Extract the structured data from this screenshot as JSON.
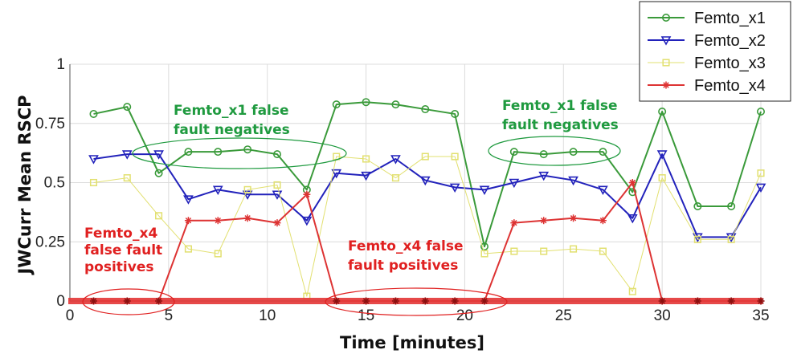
{
  "chart_data": {
    "type": "line",
    "title": "",
    "xlabel": "Time [minutes]",
    "ylabel": "JWCurr Mean RSCP",
    "xlim": [
      0,
      35
    ],
    "ylim": [
      0,
      1
    ],
    "xticks": [
      0,
      5,
      10,
      15,
      20,
      25,
      30,
      35
    ],
    "xtick_labels": [
      "0",
      "5",
      "10",
      "15",
      "20",
      "25",
      "30",
      "35"
    ],
    "yticks": [
      0,
      0.25,
      0.5,
      0.75,
      1
    ],
    "ytick_labels": [
      "0",
      "0.25",
      "0.5",
      "0.75",
      "1"
    ],
    "grid": true,
    "legend_position": "top-right",
    "series": [
      {
        "name": "Femto_x1",
        "color": "#3a9a3a",
        "marker": "circle",
        "x": [
          1.2,
          2.9,
          4.5,
          6.0,
          7.5,
          9.0,
          10.5,
          12.0,
          13.5,
          15.0,
          16.5,
          18.0,
          19.5,
          21.0,
          22.5,
          24.0,
          25.5,
          27.0,
          28.5,
          30.0,
          31.8,
          33.5,
          35.0
        ],
        "y": [
          0.79,
          0.82,
          0.54,
          0.63,
          0.63,
          0.64,
          0.62,
          0.47,
          0.83,
          0.84,
          0.83,
          0.81,
          0.79,
          0.23,
          0.63,
          0.62,
          0.63,
          0.63,
          0.46,
          0.8,
          0.4,
          0.4,
          0.8
        ]
      },
      {
        "name": "Femto_x2",
        "color": "#2222bb",
        "marker": "triangle-down",
        "x": [
          1.2,
          2.9,
          4.5,
          6.0,
          7.5,
          9.0,
          10.5,
          12.0,
          13.5,
          15.0,
          16.5,
          18.0,
          19.5,
          21.0,
          22.5,
          24.0,
          25.5,
          27.0,
          28.5,
          30.0,
          31.8,
          33.5,
          35.0
        ],
        "y": [
          0.6,
          0.62,
          0.62,
          0.43,
          0.47,
          0.45,
          0.45,
          0.34,
          0.54,
          0.53,
          0.6,
          0.51,
          0.48,
          0.47,
          0.5,
          0.53,
          0.51,
          0.47,
          0.35,
          0.62,
          0.27,
          0.27,
          0.48
        ]
      },
      {
        "name": "Femto_x3",
        "color": "#e2e070",
        "marker": "square",
        "x": [
          1.2,
          2.9,
          4.5,
          6.0,
          7.5,
          9.0,
          10.5,
          12.0,
          13.5,
          15.0,
          16.5,
          18.0,
          19.5,
          21.0,
          22.5,
          24.0,
          25.5,
          27.0,
          28.5,
          30.0,
          31.8,
          33.5,
          35.0
        ],
        "y": [
          0.5,
          0.52,
          0.36,
          0.22,
          0.2,
          0.47,
          0.49,
          0.02,
          0.61,
          0.6,
          0.52,
          0.61,
          0.61,
          0.2,
          0.21,
          0.21,
          0.22,
          0.21,
          0.04,
          0.52,
          0.26,
          0.26,
          0.54
        ]
      },
      {
        "name": "Femto_x4",
        "color": "#dd3333",
        "marker": "star",
        "x": [
          1.2,
          2.9,
          4.5,
          6.0,
          7.5,
          9.0,
          10.5,
          12.0,
          13.5,
          15.0,
          16.5,
          18.0,
          19.5,
          21.0,
          22.5,
          24.0,
          25.5,
          27.0,
          28.5,
          30.0,
          31.8,
          33.5,
          35.0
        ],
        "y": [
          0.0,
          0.0,
          0.0,
          0.34,
          0.34,
          0.35,
          0.33,
          0.45,
          0.0,
          0.0,
          0.0,
          0.0,
          0.0,
          0.0,
          0.33,
          0.34,
          0.35,
          0.34,
          0.5,
          0.0,
          0.0,
          0.0,
          0.0
        ]
      }
    ],
    "annotations": [
      {
        "id": "ann-x4-left",
        "text_lines": [
          "Femto_x4",
          "false fault",
          "positives"
        ],
        "color": "#e02020"
      },
      {
        "id": "ann-x1-mid",
        "text_lines": [
          "Femto_x1 false",
          "fault negatives"
        ],
        "color": "#1f9a3f"
      },
      {
        "id": "ann-x4-mid",
        "text_lines": [
          "Femto_x4 false",
          "fault positives"
        ],
        "color": "#e02020"
      },
      {
        "id": "ann-x1-right",
        "text_lines": [
          "Femto_x1 false",
          "fault negatives"
        ],
        "color": "#1f9a3f"
      }
    ]
  }
}
